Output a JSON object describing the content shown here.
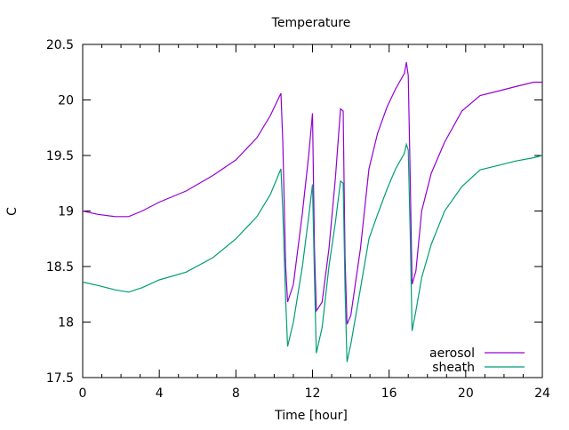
{
  "chart_data": {
    "type": "line",
    "title": "Temperature",
    "xlabel": "Time [hour]",
    "ylabel": "C",
    "xlim": [
      0,
      24
    ],
    "ylim": [
      17.5,
      20.5
    ],
    "xticks": [
      0,
      4,
      8,
      12,
      16,
      20,
      24
    ],
    "yticks": [
      17.5,
      18,
      18.5,
      19,
      19.5,
      20,
      20.5
    ],
    "ytick_labels": [
      "17.5",
      "18",
      "18.5",
      "19",
      "19.5",
      "20",
      "20.5"
    ],
    "grid": false,
    "legend_position": "bottom-right",
    "series": [
      {
        "name": "aerosol",
        "color": "#9400d3",
        "x": [
          0,
          0.8,
          1.7,
          2.4,
          3.1,
          4.0,
          5.4,
          6.8,
          8.0,
          9.1,
          9.8,
          10.35,
          10.45,
          10.6,
          10.7,
          11.0,
          11.47,
          11.8,
          12.0,
          12.1,
          12.2,
          12.5,
          12.86,
          13.2,
          13.46,
          13.6,
          13.7,
          13.8,
          14.0,
          14.5,
          14.95,
          15.4,
          15.9,
          16.34,
          16.8,
          16.9,
          17.0,
          17.1,
          17.2,
          17.4,
          17.7,
          18.2,
          18.9,
          19.8,
          20.75,
          21.7,
          22.6,
          23.55,
          24
        ],
        "y": [
          19.0,
          18.97,
          18.95,
          18.95,
          19.0,
          19.08,
          19.18,
          19.32,
          19.46,
          19.66,
          19.86,
          20.06,
          19.62,
          18.5,
          18.18,
          18.34,
          18.98,
          19.5,
          19.88,
          18.66,
          18.1,
          18.18,
          18.66,
          19.3,
          19.92,
          19.9,
          18.58,
          17.98,
          18.06,
          18.66,
          19.38,
          19.7,
          19.94,
          20.1,
          20.24,
          20.34,
          20.22,
          19.3,
          18.34,
          18.46,
          19.0,
          19.34,
          19.62,
          19.9,
          20.04,
          20.08,
          20.12,
          20.16,
          20.16
        ]
      },
      {
        "name": "sheath",
        "color": "#009e73",
        "x": [
          0,
          0.8,
          1.7,
          2.4,
          3.1,
          4.0,
          5.4,
          6.8,
          8.0,
          9.1,
          9.8,
          10.35,
          10.45,
          10.6,
          10.7,
          11.0,
          11.47,
          11.8,
          12.0,
          12.1,
          12.2,
          12.5,
          12.86,
          13.2,
          13.46,
          13.6,
          13.7,
          13.8,
          14.0,
          14.5,
          14.95,
          15.4,
          15.9,
          16.34,
          16.8,
          16.9,
          17.0,
          17.1,
          17.2,
          17.4,
          17.7,
          18.2,
          18.9,
          19.8,
          20.75,
          21.7,
          22.6,
          23.55,
          24
        ],
        "y": [
          18.36,
          18.33,
          18.29,
          18.27,
          18.31,
          18.38,
          18.45,
          18.58,
          18.75,
          18.95,
          19.15,
          19.38,
          19.0,
          18.2,
          17.78,
          18.0,
          18.5,
          18.95,
          19.24,
          18.4,
          17.72,
          17.95,
          18.5,
          18.9,
          19.27,
          19.25,
          18.3,
          17.64,
          17.8,
          18.3,
          18.75,
          18.97,
          19.2,
          19.38,
          19.52,
          19.6,
          19.55,
          18.8,
          17.92,
          18.1,
          18.4,
          18.7,
          19.0,
          19.22,
          19.37,
          19.41,
          19.45,
          19.48,
          19.5
        ]
      }
    ]
  }
}
